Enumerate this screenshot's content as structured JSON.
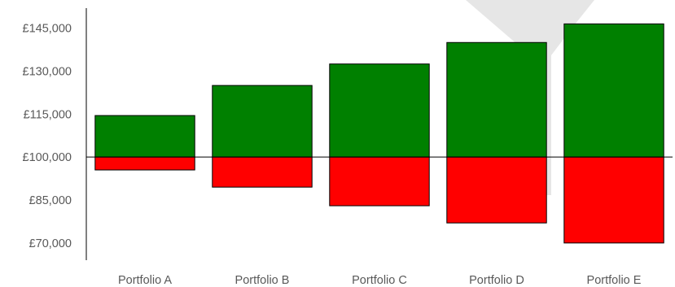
{
  "chart_data": {
    "type": "bar",
    "categories": [
      "Portfolio A",
      "Portfolio B",
      "Portfolio C",
      "Portfolio D",
      "Portfolio E"
    ],
    "baseline": 100000,
    "series": [
      {
        "values": [
          114500,
          125000,
          132500,
          140000,
          146500
        ]
      },
      {
        "values": [
          95500,
          89500,
          83000,
          77000,
          70000
        ]
      }
    ],
    "ylim": [
      64000,
      152000
    ],
    "yticks": [
      70000,
      85000,
      100000,
      115000,
      130000,
      145000
    ],
    "ytick_labels": [
      "£70,000",
      "£85,000",
      "£100,000",
      "£115,000",
      "£130,000",
      "£145,000"
    ],
    "colors": {
      "gain": "#008000",
      "loss": "#ff0000",
      "watermark": "#e6e6e6",
      "axis": "#000000",
      "text": "#595959"
    },
    "grid": false,
    "legend": "none",
    "title": "",
    "xlabel": "",
    "ylabel": ""
  }
}
